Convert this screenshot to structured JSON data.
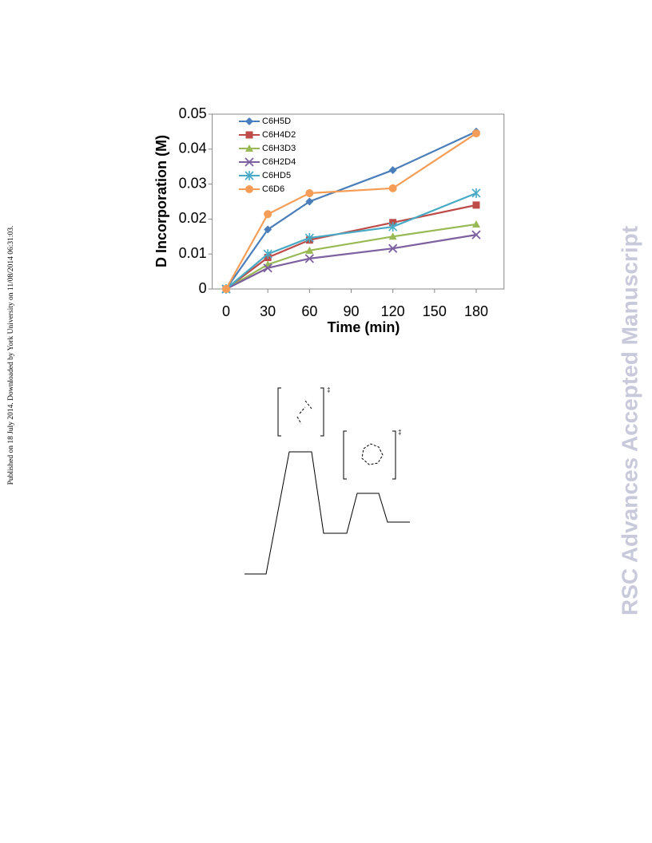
{
  "chart_data": {
    "type": "line",
    "xlabel": "Time (min)",
    "ylabel": "D Incorporation (M)",
    "x": [
      0,
      30,
      60,
      120,
      180
    ],
    "xlim": [
      -10,
      200
    ],
    "xticks": [
      0,
      30,
      60,
      90,
      120,
      150,
      180
    ],
    "ylim": [
      0,
      0.05
    ],
    "yticks": [
      0,
      0.01,
      0.02,
      0.03,
      0.04,
      0.05
    ],
    "legend": "upper left",
    "series": [
      {
        "name": "C6H5D",
        "color": "#4a7ebb",
        "marker": "diamond",
        "values": [
          0,
          0.017,
          0.025,
          0.034,
          0.045
        ]
      },
      {
        "name": "C6H4D2",
        "color": "#be4b48",
        "marker": "square",
        "values": [
          0,
          0.009,
          0.014,
          0.019,
          0.024
        ]
      },
      {
        "name": "C6H3D3",
        "color": "#98b954",
        "marker": "triangle",
        "values": [
          0,
          0.007,
          0.011,
          0.015,
          0.0185
        ]
      },
      {
        "name": "C6H2D4",
        "color": "#7d60a0",
        "marker": "x",
        "values": [
          0,
          0.006,
          0.0087,
          0.0116,
          0.0155
        ]
      },
      {
        "name": "C6HD5",
        "color": "#46aac5",
        "marker": "star",
        "values": [
          0,
          0.01,
          0.0146,
          0.0178,
          0.0274
        ]
      },
      {
        "name": "C6D6",
        "color": "#f59d56",
        "marker": "circle",
        "values": [
          0,
          0.0214,
          0.0274,
          0.0288,
          0.0445
        ]
      }
    ]
  },
  "sidebar": {
    "left": "Published on 18 July 2014. Downloaded by York University on 11/08/2014 06:31:03.",
    "right": "RSC Advances Accepted Manuscript"
  },
  "diagram": {
    "ts_labels": [
      "‡",
      "‡"
    ]
  }
}
